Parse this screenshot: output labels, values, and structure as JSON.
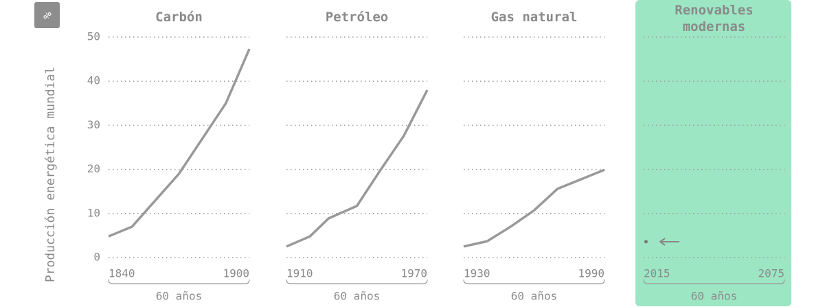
{
  "unit": "%",
  "ylabel": "Producción energética mundial",
  "chart_data": [
    {
      "type": "line",
      "title": "Carbón",
      "x": [
        1840,
        1850,
        1860,
        1870,
        1880,
        1890,
        1900
      ],
      "values": [
        4.8,
        7,
        13,
        19,
        27,
        35,
        47.3
      ],
      "xlim": [
        1840,
        1900
      ],
      "xticks": [
        1840,
        1900
      ],
      "ylim": [
        0,
        50
      ],
      "yticks": [
        0,
        10,
        20,
        30,
        40,
        50
      ],
      "color": "#999999",
      "span_label": "60 años"
    },
    {
      "type": "line",
      "title": "Petróleo",
      "x": [
        1910,
        1920,
        1928,
        1940,
        1950,
        1960,
        1970
      ],
      "values": [
        2.5,
        4.8,
        8.9,
        11.7,
        19.8,
        27.6,
        38
      ],
      "xlim": [
        1910,
        1970
      ],
      "xticks": [
        1910,
        1970
      ],
      "ylim": [
        0,
        50
      ],
      "yticks": [
        0,
        10,
        20,
        30,
        40,
        50
      ],
      "color": "#999999",
      "span_label": "60 años"
    },
    {
      "type": "line",
      "title": "Gas natural",
      "x": [
        1930,
        1940,
        1950,
        1960,
        1970,
        1990
      ],
      "values": [
        2.5,
        3.7,
        7,
        10.7,
        15.6,
        19.9
      ],
      "xlim": [
        1930,
        1990
      ],
      "xticks": [
        1930,
        1990
      ],
      "ylim": [
        0,
        50
      ],
      "yticks": [
        0,
        10,
        20,
        30,
        40,
        50
      ],
      "color": "#999999",
      "span_label": "60 años"
    },
    {
      "type": "line",
      "title": "Renovables modernas",
      "x": [
        2016
      ],
      "values": [
        3.6
      ],
      "xlim": [
        2015,
        2075
      ],
      "xticks": [
        2015,
        2075
      ],
      "ylim": [
        0,
        50
      ],
      "yticks": [
        0,
        10,
        20,
        30,
        40,
        50
      ],
      "color": "#999999",
      "span_label": "60 años",
      "highlight": "#9de6c4"
    }
  ]
}
